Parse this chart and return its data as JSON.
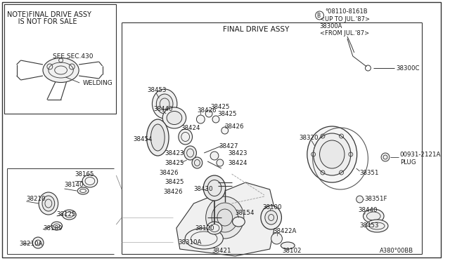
{
  "bg_color": "#ffffff",
  "border_color": "#333333",
  "line_color": "#333333",
  "text_color": "#1a1a1a",
  "title": "FINAL DRIVE ASSY",
  "diagram_ref": "A380°00BB",
  "note_line1": "NOTE)FINAL DRIVE ASSY",
  "note_line2": "     IS NOT FOR SALE",
  "see_sec": "SEE SEC.430",
  "welding_label": "WELDING",
  "bolt_ref_top": "°08110-8161B",
  "bolt_ref_line1": "<UP TO JUL.'87>",
  "bolt_ref_line2": "38300A",
  "bolt_ref_line3": "<FROM JUL.'87>",
  "font_size_label": 6.2,
  "font_size_note": 7.0,
  "font_size_title": 7.5,
  "font_size_ref": 6.0
}
